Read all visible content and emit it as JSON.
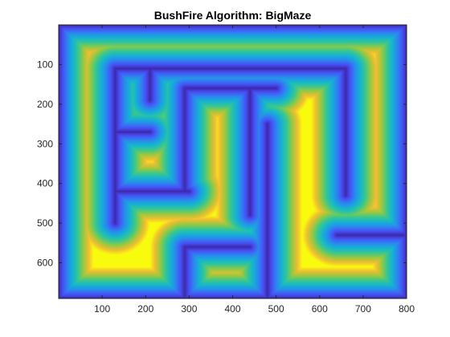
{
  "chart_data": {
    "type": "heatmap",
    "title": "BushFire Algorithm: BigMaze",
    "xlabel": "",
    "ylabel": "",
    "xlim": [
      0,
      800
    ],
    "ylim": [
      690,
      0
    ],
    "y_direction": "reversed",
    "colormap": "parula",
    "grid": false,
    "legend": "none",
    "x_ticks": [
      100,
      200,
      300,
      400,
      500,
      600,
      700,
      800
    ],
    "y_ticks": [
      100,
      200,
      300,
      400,
      500,
      600
    ],
    "value_description": "distance-to-wall transform of maze corridors",
    "maze_extent": {
      "x": [
        0,
        800
      ],
      "y": [
        0,
        690
      ]
    },
    "wall_segments": [
      {
        "x1": 130,
        "y1": 110,
        "x2": 660,
        "y2": 110
      },
      {
        "x1": 130,
        "y1": 110,
        "x2": 130,
        "y2": 500
      },
      {
        "x1": 130,
        "y1": 270,
        "x2": 210,
        "y2": 270
      },
      {
        "x1": 210,
        "y1": 110,
        "x2": 210,
        "y2": 190
      },
      {
        "x1": 130,
        "y1": 420,
        "x2": 300,
        "y2": 420
      },
      {
        "x1": 290,
        "y1": 160,
        "x2": 290,
        "y2": 420
      },
      {
        "x1": 290,
        "y1": 160,
        "x2": 500,
        "y2": 160
      },
      {
        "x1": 440,
        "y1": 160,
        "x2": 440,
        "y2": 480
      },
      {
        "x1": 290,
        "y1": 560,
        "x2": 440,
        "y2": 560
      },
      {
        "x1": 290,
        "y1": 560,
        "x2": 290,
        "y2": 690
      },
      {
        "x1": 660,
        "y1": 110,
        "x2": 660,
        "y2": 430
      },
      {
        "x1": 480,
        "y1": 250,
        "x2": 480,
        "y2": 690
      },
      {
        "x1": 640,
        "y1": 530,
        "x2": 800,
        "y2": 530
      }
    ]
  }
}
